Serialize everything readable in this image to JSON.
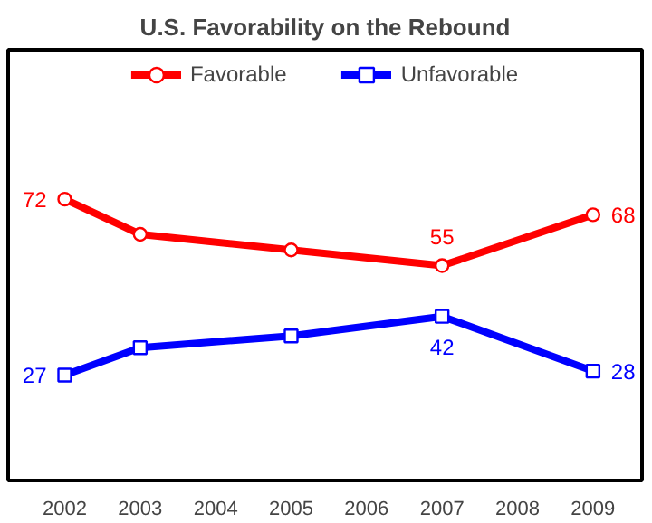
{
  "chart_data": {
    "type": "line",
    "title": "U.S. Favorability on the Rebound",
    "categories": [
      "2002",
      "2003",
      "2004",
      "2005",
      "2006",
      "2007",
      "2008",
      "2009"
    ],
    "series": [
      {
        "name": "Favorable",
        "color": "#ff0000",
        "marker": "circle",
        "values": [
          72,
          63,
          null,
          59,
          null,
          55,
          null,
          68
        ],
        "value_labels": [
          "72",
          null,
          null,
          null,
          null,
          "55",
          null,
          "68"
        ]
      },
      {
        "name": "Unfavorable",
        "color": "#0000ff",
        "marker": "square",
        "values": [
          27,
          34,
          null,
          37,
          null,
          42,
          null,
          28
        ],
        "value_labels": [
          "27",
          null,
          null,
          null,
          null,
          "42",
          null,
          "28"
        ]
      }
    ],
    "legend": "top"
  }
}
